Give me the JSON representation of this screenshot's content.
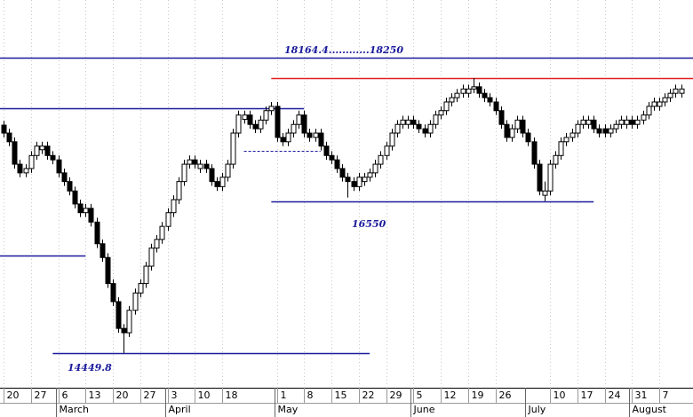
{
  "chart_data": {
    "type": "candlestick",
    "ylim": [
      13970,
      19330
    ],
    "categories": [
      "20",
      null,
      null,
      null,
      null,
      "27",
      null,
      null,
      null,
      null,
      "6",
      null,
      null,
      null,
      null,
      "13",
      null,
      null,
      null,
      null,
      "20",
      null,
      null,
      null,
      null,
      "27",
      null,
      null,
      null,
      null,
      "3",
      null,
      null,
      null,
      null,
      "10",
      null,
      null,
      null,
      null,
      "18",
      null,
      null,
      null,
      null,
      null,
      null,
      null,
      null,
      null,
      "1",
      null,
      null,
      null,
      null,
      "8",
      null,
      null,
      null,
      null,
      "15",
      null,
      null,
      null,
      null,
      "22",
      null,
      null,
      null,
      null,
      "29",
      null,
      null,
      null,
      null,
      "5",
      null,
      null,
      null,
      null,
      "12",
      null,
      null,
      null,
      null,
      "19",
      null,
      null,
      null,
      null,
      "26",
      null,
      null,
      null,
      null,
      null,
      null,
      null,
      null,
      null,
      "10",
      null,
      null,
      null,
      null,
      "17",
      null,
      null,
      null,
      null,
      "24",
      null,
      null,
      null,
      null,
      "31",
      null,
      null,
      null,
      null,
      "7",
      null,
      null,
      null,
      null
    ],
    "months": [
      null,
      null,
      null,
      null,
      null,
      null,
      null,
      null,
      null,
      null,
      "March",
      null,
      null,
      null,
      null,
      null,
      null,
      null,
      null,
      null,
      null,
      null,
      null,
      null,
      null,
      null,
      null,
      null,
      null,
      null,
      "April",
      null,
      null,
      null,
      null,
      null,
      null,
      null,
      null,
      null,
      null,
      null,
      null,
      null,
      null,
      null,
      null,
      null,
      null,
      null,
      "May",
      null,
      null,
      null,
      null,
      null,
      null,
      null,
      null,
      null,
      null,
      null,
      null,
      null,
      null,
      null,
      null,
      null,
      null,
      null,
      null,
      null,
      null,
      null,
      null,
      "June",
      null,
      null,
      null,
      null,
      null,
      null,
      null,
      null,
      null,
      null,
      null,
      null,
      null,
      null,
      null,
      null,
      null,
      null,
      null,
      null,
      "July",
      null,
      null,
      null,
      null,
      null,
      null,
      null,
      null,
      null,
      null,
      null,
      null,
      null,
      null,
      null,
      null,
      null,
      null,
      "August",
      null,
      null,
      null,
      null,
      null,
      null,
      null,
      null
    ],
    "ohlc": [
      [
        17600,
        17660,
        17430,
        17490
      ],
      [
        17490,
        17550,
        17310,
        17370
      ],
      [
        17370,
        17430,
        17000,
        17060
      ],
      [
        17060,
        17120,
        16880,
        16940
      ],
      [
        16940,
        17060,
        16880,
        17000
      ],
      [
        17000,
        17240,
        16940,
        17180
      ],
      [
        17180,
        17370,
        17120,
        17310
      ],
      [
        17260,
        17370,
        17200,
        17310
      ],
      [
        17310,
        17370,
        17120,
        17180
      ],
      [
        17180,
        17240,
        17060,
        17120
      ],
      [
        17120,
        17180,
        16880,
        16940
      ],
      [
        16940,
        17000,
        16760,
        16820
      ],
      [
        16820,
        16880,
        16630,
        16690
      ],
      [
        16690,
        16750,
        16450,
        16510
      ],
      [
        16510,
        16570,
        16330,
        16390
      ],
      [
        16390,
        16510,
        16330,
        16450
      ],
      [
        16450,
        16510,
        16200,
        16260
      ],
      [
        16260,
        16320,
        15900,
        15960
      ],
      [
        15960,
        16020,
        15710,
        15770
      ],
      [
        15770,
        15830,
        15350,
        15410
      ],
      [
        15410,
        15470,
        15100,
        15160
      ],
      [
        15160,
        15220,
        14730,
        14790
      ],
      [
        14790,
        14850,
        14450,
        14730
      ],
      [
        14730,
        15100,
        14670,
        15040
      ],
      [
        15040,
        15340,
        14980,
        15280
      ],
      [
        15280,
        15470,
        15220,
        15410
      ],
      [
        15410,
        15710,
        15350,
        15650
      ],
      [
        15650,
        15960,
        15590,
        15900
      ],
      [
        15900,
        16080,
        15840,
        16020
      ],
      [
        16020,
        16260,
        15960,
        16200
      ],
      [
        16200,
        16450,
        16140,
        16390
      ],
      [
        16390,
        16630,
        16330,
        16570
      ],
      [
        16570,
        16880,
        16510,
        16820
      ],
      [
        16820,
        17120,
        16760,
        17060
      ],
      [
        17060,
        17180,
        17000,
        17120
      ],
      [
        17120,
        17180,
        17000,
        17060
      ],
      [
        17000,
        17120,
        16940,
        17060
      ],
      [
        17060,
        17120,
        16940,
        17000
      ],
      [
        17000,
        17060,
        16760,
        16820
      ],
      [
        16820,
        16880,
        16690,
        16750
      ],
      [
        16750,
        16940,
        16690,
        16880
      ],
      [
        16880,
        17120,
        16820,
        17060
      ],
      [
        17060,
        17550,
        17000,
        17490
      ],
      [
        17490,
        17800,
        17430,
        17740
      ],
      [
        17680,
        17800,
        17620,
        17740
      ],
      [
        17740,
        17800,
        17550,
        17610
      ],
      [
        17610,
        17670,
        17490,
        17550
      ],
      [
        17550,
        17730,
        17490,
        17670
      ],
      [
        17670,
        17860,
        17610,
        17800
      ],
      [
        17800,
        17920,
        17740,
        17860
      ],
      [
        17860,
        17920,
        17370,
        17430
      ],
      [
        17430,
        17490,
        17310,
        17370
      ],
      [
        17370,
        17550,
        17310,
        17490
      ],
      [
        17490,
        17670,
        17430,
        17610
      ],
      [
        17610,
        17800,
        17550,
        17740
      ],
      [
        17740,
        17800,
        17430,
        17490
      ],
      [
        17490,
        17550,
        17370,
        17430
      ],
      [
        17430,
        17550,
        17370,
        17490
      ],
      [
        17490,
        17550,
        17250,
        17310
      ],
      [
        17310,
        17370,
        17120,
        17180
      ],
      [
        17180,
        17240,
        17060,
        17120
      ],
      [
        17120,
        17180,
        16940,
        17000
      ],
      [
        17000,
        17060,
        16820,
        16880
      ],
      [
        16880,
        16940,
        16600,
        16820
      ],
      [
        16820,
        16880,
        16690,
        16750
      ],
      [
        16750,
        16940,
        16690,
        16880
      ],
      [
        16820,
        16940,
        16760,
        16880
      ],
      [
        16880,
        17000,
        16820,
        16940
      ],
      [
        16940,
        17120,
        16880,
        17060
      ],
      [
        17060,
        17240,
        17000,
        17180
      ],
      [
        17180,
        17370,
        17120,
        17310
      ],
      [
        17310,
        17550,
        17250,
        17490
      ],
      [
        17490,
        17670,
        17430,
        17610
      ],
      [
        17610,
        17730,
        17550,
        17670
      ],
      [
        17610,
        17730,
        17550,
        17670
      ],
      [
        17670,
        17730,
        17550,
        17610
      ],
      [
        17610,
        17670,
        17490,
        17550
      ],
      [
        17550,
        17610,
        17430,
        17490
      ],
      [
        17490,
        17670,
        17430,
        17610
      ],
      [
        17610,
        17800,
        17550,
        17740
      ],
      [
        17740,
        17860,
        17680,
        17800
      ],
      [
        17800,
        17980,
        17740,
        17920
      ],
      [
        17920,
        18040,
        17860,
        17980
      ],
      [
        17980,
        18100,
        17920,
        18040
      ],
      [
        18040,
        18160,
        17980,
        18100
      ],
      [
        18040,
        18160,
        17980,
        18100
      ],
      [
        18100,
        18250,
        18040,
        18130
      ],
      [
        18130,
        18190,
        17980,
        18040
      ],
      [
        18040,
        18100,
        17920,
        17980
      ],
      [
        17980,
        18040,
        17860,
        17920
      ],
      [
        17920,
        17980,
        17740,
        17800
      ],
      [
        17800,
        17860,
        17550,
        17610
      ],
      [
        17610,
        17670,
        17370,
        17430
      ],
      [
        17430,
        17610,
        17370,
        17550
      ],
      [
        17550,
        17730,
        17490,
        17670
      ],
      [
        17670,
        17730,
        17430,
        17490
      ],
      [
        17490,
        17550,
        17310,
        17370
      ],
      [
        17370,
        17430,
        17000,
        17060
      ],
      [
        17060,
        17120,
        16630,
        16690
      ],
      [
        16630,
        16820,
        16550,
        16690
      ],
      [
        16690,
        17120,
        16630,
        17060
      ],
      [
        17060,
        17240,
        17000,
        17180
      ],
      [
        17180,
        17430,
        17120,
        17370
      ],
      [
        17370,
        17490,
        17310,
        17430
      ],
      [
        17430,
        17550,
        17370,
        17490
      ],
      [
        17490,
        17670,
        17430,
        17610
      ],
      [
        17610,
        17730,
        17550,
        17670
      ],
      [
        17610,
        17730,
        17550,
        17670
      ],
      [
        17670,
        17730,
        17490,
        17550
      ],
      [
        17550,
        17610,
        17430,
        17490
      ],
      [
        17550,
        17610,
        17430,
        17490
      ],
      [
        17490,
        17610,
        17430,
        17550
      ],
      [
        17550,
        17670,
        17490,
        17610
      ],
      [
        17610,
        17730,
        17550,
        17670
      ],
      [
        17610,
        17730,
        17550,
        17670
      ],
      [
        17670,
        17730,
        17550,
        17610
      ],
      [
        17610,
        17730,
        17550,
        17670
      ],
      [
        17670,
        17800,
        17610,
        17740
      ],
      [
        17740,
        17920,
        17680,
        17860
      ],
      [
        17860,
        17980,
        17800,
        17920
      ],
      [
        17860,
        17980,
        17800,
        17920
      ],
      [
        17920,
        18040,
        17860,
        17980
      ],
      [
        17980,
        18100,
        17920,
        18040
      ],
      [
        18040,
        18160,
        17980,
        18100
      ],
      [
        18040,
        18160,
        17980,
        18100
      ]
    ],
    "levels": [
      {
        "value": 18530,
        "from": 0,
        "to": 124,
        "color": "#1a1a9c",
        "dashed": false
      },
      {
        "value": 18250,
        "from": 49,
        "to": 124,
        "color": "#e02020",
        "dashed": false
      },
      {
        "value": 17830,
        "from": 0,
        "to": 55,
        "color": "#1a1a9c",
        "dashed": false
      },
      {
        "value": 17245,
        "from": 44,
        "to": 58,
        "color": "#1a1a9c",
        "dashed": true
      },
      {
        "value": 16550,
        "from": 49,
        "to": 108,
        "color": "#1a1a9c",
        "dashed": false
      },
      {
        "value": 15800,
        "from": 0,
        "to": 15,
        "color": "#1a1a9c",
        "dashed": false
      },
      {
        "value": 14450,
        "from": 9,
        "to": 67,
        "color": "#1a1a9c",
        "dashed": false
      }
    ],
    "annotations": [
      "18164.4............18250",
      "16550",
      "14449.8"
    ]
  }
}
